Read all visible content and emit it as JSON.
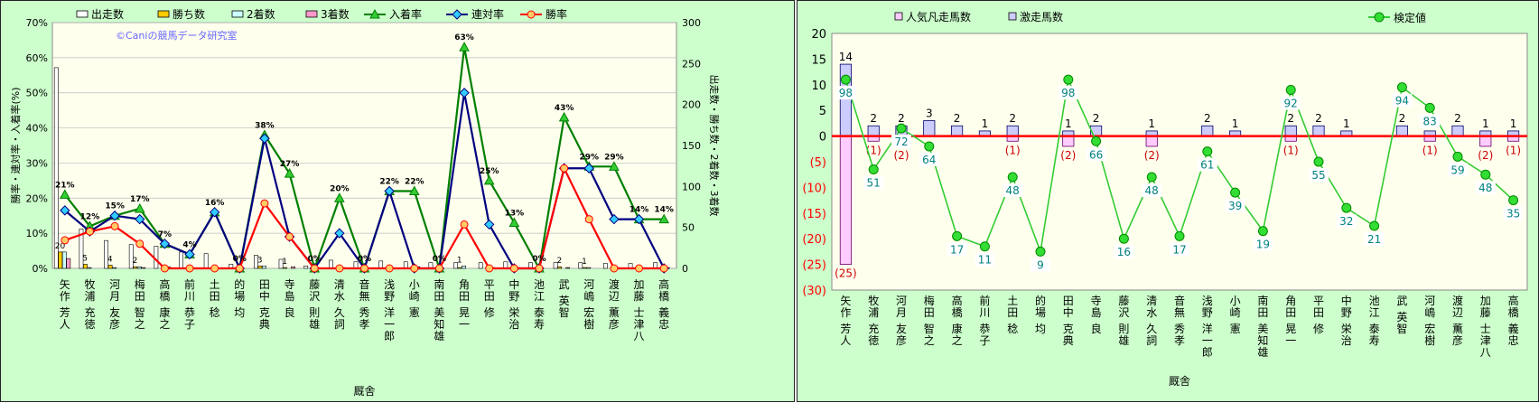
{
  "chart_data": [
    {
      "type": "bar",
      "title": "",
      "watermark": "©Caniの競馬データ研究室",
      "xlabel": "厩舎",
      "ylabel_left": "勝率・連対率・入着率(%)",
      "ylabel_right": "出走数・勝ち数・2着数・3着数",
      "ylim_left": [
        0,
        70
      ],
      "ylim_right": [
        0,
        300
      ],
      "yticks_left": [
        "0%",
        "10%",
        "20%",
        "30%",
        "40%",
        "50%",
        "60%",
        "70%"
      ],
      "yticks_right": [
        "0",
        "50",
        "100",
        "150",
        "200",
        "250",
        "300"
      ],
      "grid": true,
      "legend_position": "top",
      "categories": [
        "矢作 芳人",
        "牧浦 充徳",
        "河月 友彦",
        "梅田 智之",
        "高橋 康之",
        "前川 恭子",
        "土田 稔",
        "的場 均",
        "田中 克典",
        "寺島 良",
        "藤沢 則雄",
        "清水 久詞",
        "音無 秀孝",
        "浅野 洋一郎",
        "小崎 憲",
        "南田 美知雄",
        "角田 晃一",
        "平田 修",
        "中野 栄治",
        "池江 泰寿",
        "武 英智",
        "河嶋 宏樹",
        "渡辺 薫彦",
        "加藤 士津八",
        "高橋 義忠"
      ],
      "series": [
        {
          "name": "出走数",
          "kind": "bar",
          "axis": "right",
          "color": "#ffffff",
          "values": [
            245,
            48,
            34,
            29,
            27,
            20,
            18,
            5,
            16,
            11,
            3,
            10,
            8,
            9,
            8,
            7,
            7,
            7,
            8,
            7,
            7,
            7,
            6,
            6,
            7
          ]
        },
        {
          "name": "勝ち数",
          "kind": "bar",
          "axis": "right",
          "color": "#ffcc00",
          "values": [
            20,
            5,
            4,
            2,
            0,
            0,
            0,
            0,
            3,
            1,
            0,
            0,
            0,
            0,
            0,
            0,
            1,
            0,
            0,
            0,
            2,
            1,
            0,
            0,
            0
          ]
        },
        {
          "name": "2着数",
          "kind": "bar",
          "axis": "right",
          "color": "#ccffff",
          "values": [
            20,
            1,
            1,
            2,
            0,
            1,
            3,
            0,
            3,
            0,
            0,
            1,
            0,
            2,
            0,
            0,
            3,
            1,
            0,
            0,
            0,
            1,
            1,
            1,
            0
          ]
        },
        {
          "name": "3着数",
          "kind": "bar",
          "axis": "right",
          "color": "#ff99cc",
          "values": [
            12,
            0,
            0,
            1,
            2,
            0,
            0,
            0,
            0,
            2,
            0,
            1,
            0,
            0,
            2,
            0,
            0,
            1,
            1,
            0,
            1,
            0,
            1,
            0,
            1
          ]
        },
        {
          "name": "入着率",
          "kind": "line",
          "axis": "left",
          "color": "#008000",
          "marker": "triangle",
          "values": [
            21,
            12,
            15,
            17,
            7,
            4,
            16,
            0,
            38,
            27,
            0,
            20,
            0,
            22,
            22,
            0,
            63,
            25,
            13,
            0,
            43,
            29,
            29,
            14,
            14
          ]
        },
        {
          "name": "連対率",
          "kind": "line",
          "axis": "left",
          "color": "#000080",
          "marker": "diamond",
          "values": [
            16.5,
            10.5,
            15,
            14,
            7,
            4,
            16,
            0,
            37,
            9,
            0,
            10,
            0,
            22,
            0,
            0,
            50,
            12.5,
            0,
            0,
            28.5,
            28.5,
            14,
            14,
            0
          ]
        },
        {
          "name": "勝率",
          "kind": "line",
          "axis": "left",
          "color": "#ff0000",
          "marker": "circle",
          "values": [
            8,
            10.5,
            12,
            7,
            0,
            0,
            0,
            0,
            18.5,
            9,
            0,
            0,
            0,
            0,
            0,
            0,
            12.5,
            0,
            0,
            0,
            28.5,
            14,
            0,
            0,
            0
          ]
        }
      ],
      "labels": {
        "pct": [
          "21%",
          "12%",
          "15%",
          "17%",
          "7%",
          "4%",
          "16%",
          "0%",
          "38%",
          "27%",
          "0%",
          "20%",
          "0%",
          "22%",
          "22%",
          "0%",
          "63%",
          "25%",
          "13%",
          "0%",
          "43%",
          "29%",
          "29%",
          "14%",
          "14%"
        ],
        "win_counts": [
          "20",
          "5",
          "4",
          "2",
          "",
          "",
          "",
          "",
          "3",
          "1",
          "",
          "",
          "",
          "",
          "",
          "",
          "1",
          "",
          "",
          "",
          "2",
          "1",
          "",
          "",
          ""
        ]
      }
    },
    {
      "type": "bar",
      "title": "",
      "xlabel": "厩舎",
      "ylim": [
        -30,
        20
      ],
      "yticks": [
        "20",
        "15",
        "10",
        "5",
        "0",
        "(5)",
        "(10)",
        "(15)",
        "(20)",
        "(25)",
        "(30)"
      ],
      "grid": false,
      "legend_position": "top",
      "categories": [
        "矢作 芳人",
        "牧浦 充徳",
        "河月 友彦",
        "梅田 智之",
        "高橋 康之",
        "前川 恭子",
        "土田 稔",
        "的場 均",
        "田中 克典",
        "寺島 良",
        "藤沢 則雄",
        "清水 久詞",
        "音無 秀孝",
        "浅野 洋一郎",
        "小崎 憲",
        "南田 美知雄",
        "角田 晃一",
        "平田 修",
        "中野 栄治",
        "池江 泰寿",
        "武 英智",
        "河嶋 宏樹",
        "渡辺 薫彦",
        "加藤 士津八",
        "高橋 義忠"
      ],
      "series": [
        {
          "name": "人気凡走馬数",
          "kind": "bar",
          "color": "#ffccff",
          "values": [
            -25,
            -1,
            -2,
            0,
            0,
            0,
            -1,
            0,
            -2,
            0,
            0,
            -2,
            0,
            0,
            0,
            0,
            -1,
            0,
            0,
            0,
            0,
            -1,
            0,
            -2,
            -1
          ]
        },
        {
          "name": "激走馬数",
          "kind": "bar",
          "color": "#ccccff",
          "values": [
            14,
            2,
            2,
            3,
            2,
            1,
            2,
            0,
            1,
            2,
            0,
            1,
            0,
            2,
            1,
            0,
            2,
            2,
            1,
            0,
            2,
            1,
            2,
            1,
            1
          ]
        },
        {
          "name": "検定値",
          "kind": "line",
          "color": "#00cc00",
          "values": [
            11,
            -6.5,
            1.5,
            -2,
            -19.5,
            -21.5,
            -8,
            -22.5,
            11,
            -1,
            -20,
            -8,
            -19.5,
            -3,
            -11,
            -18.5,
            9,
            -5,
            -14,
            -17.5,
            9.5,
            5.5,
            -4,
            -7.5,
            -12.5
          ]
        }
      ],
      "labels": {
        "pos": [
          "14",
          "2",
          "2",
          "3",
          "2",
          "1",
          "2",
          "",
          "1",
          "2",
          "",
          "1",
          "",
          "2",
          "1",
          "",
          "2",
          "2",
          "1",
          "",
          "2",
          "",
          "2",
          "1",
          "1"
        ],
        "neg": [
          "(25)",
          "(1)",
          "(2)",
          "",
          "",
          "",
          "(1)",
          "",
          "(2)",
          "",
          "",
          "(2)",
          "",
          "",
          "",
          "",
          "(1)",
          "",
          "",
          "",
          "",
          "(1)",
          "",
          "(2)",
          "(1)"
        ],
        "score": [
          "98",
          "51",
          "72",
          "64",
          "17",
          "11",
          "48",
          "9",
          "98",
          "66",
          "16",
          "48",
          "17",
          "61",
          "39",
          "19",
          "92",
          "55",
          "32",
          "21",
          "94",
          "83",
          "59",
          "48",
          "35"
        ]
      }
    }
  ]
}
